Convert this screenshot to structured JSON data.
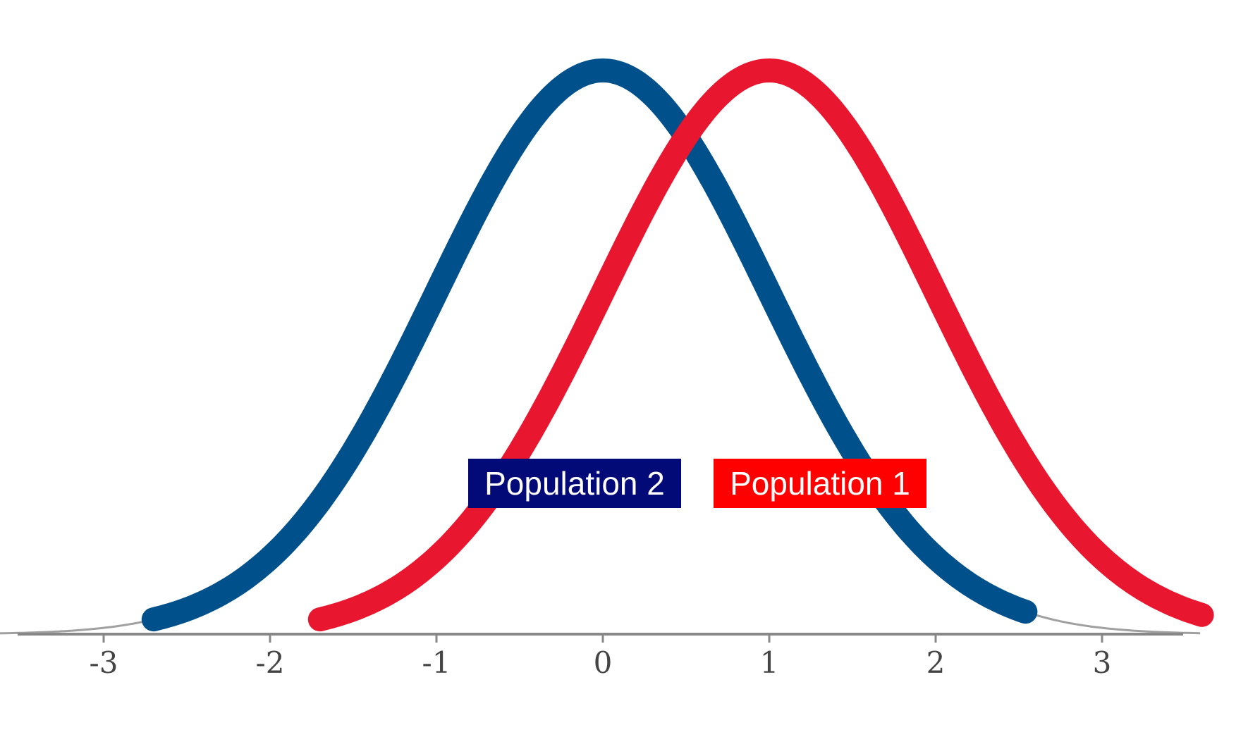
{
  "chart_data": {
    "type": "line",
    "title": "",
    "xlabel": "",
    "ylabel": "",
    "x_ticks": [
      "-3",
      "-2",
      "-1",
      "0",
      "1",
      "2",
      "3"
    ],
    "xlim": [
      -3,
      3.5
    ],
    "grid": false,
    "series": [
      {
        "name": "Population 2",
        "color": "#00508c",
        "mean": 0,
        "sd": 1,
        "x_range": [
          -2.7,
          2.55
        ]
      },
      {
        "name": "Population 1",
        "color": "#e8162e",
        "mean": 1,
        "sd": 1,
        "x_range": [
          -1.7,
          3.6
        ]
      }
    ],
    "labels": [
      {
        "text": "Population 2",
        "bg": "#020a78"
      },
      {
        "text": "Population 1",
        "bg": "#ff0000"
      }
    ]
  }
}
